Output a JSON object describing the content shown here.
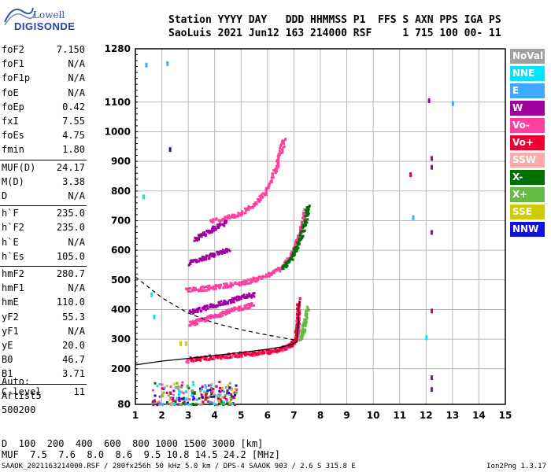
{
  "logo": {
    "line1": "Lowell",
    "line2": "DIGISONDE"
  },
  "header": {
    "line1": "Station YYYY DAY   DDD HHMMSS P1  FFS S AXN PPS IGA PS",
    "line2": "SaoLuis 2021 Jun12 163 214000 RSF     1 715 100 00- 11"
  },
  "params": [
    {
      "name": "foF2",
      "value": "7.150"
    },
    {
      "name": "foF1",
      "value": "N/A"
    },
    {
      "name": "foF1p",
      "value": "N/A"
    },
    {
      "name": "foE",
      "value": "N/A"
    },
    {
      "name": "foEp",
      "value": "0.42"
    },
    {
      "name": "fxI",
      "value": "7.55"
    },
    {
      "name": "foEs",
      "value": "4.75"
    },
    {
      "name": "fmin",
      "value": "1.80"
    },
    {
      "name": "MUF(D)",
      "value": "24.17"
    },
    {
      "name": "M(D)",
      "value": "3.38"
    },
    {
      "name": "D",
      "value": "N/A"
    },
    {
      "name": "h`F",
      "value": "235.0"
    },
    {
      "name": "h`F2",
      "value": "235.0"
    },
    {
      "name": "h`E",
      "value": "N/A"
    },
    {
      "name": "h`Es",
      "value": "105.0"
    },
    {
      "name": "hmF2",
      "value": "280.7"
    },
    {
      "name": "hmF1",
      "value": "N/A"
    },
    {
      "name": "hmE",
      "value": "110.0"
    },
    {
      "name": "yF2",
      "value": "55.3"
    },
    {
      "name": "yF1",
      "value": "N/A"
    },
    {
      "name": "yE",
      "value": "20.0"
    },
    {
      "name": "B0",
      "value": "46.7"
    },
    {
      "name": "B1",
      "value": "3.71"
    },
    {
      "name": "C-level",
      "value": "11"
    }
  ],
  "auto": {
    "line1": "Auto:",
    "line2": "Artist5",
    "line3": "500200"
  },
  "legend": [
    {
      "label": "NoVal",
      "color": "#a0a0a0"
    },
    {
      "label": "NNE",
      "color": "#00e5ff"
    },
    {
      "label": "E",
      "color": "#3fa9ff"
    },
    {
      "label": "W",
      "color": "#a000a0"
    },
    {
      "label": "Vo-",
      "color": "#ff40a0"
    },
    {
      "label": "Vo+",
      "color": "#ee0033"
    },
    {
      "label": "SSW",
      "color": "#ffaaaa"
    },
    {
      "label": "X-",
      "color": "#007000"
    },
    {
      "label": "X+",
      "color": "#66bb44"
    },
    {
      "label": "SSE",
      "color": "#cccc00"
    },
    {
      "label": "NNW",
      "color": "#1010dd"
    }
  ],
  "muf_table": {
    "d_label": "D",
    "d_values": "  100  200  400  600  800 1000 1500 3000 [km]",
    "muf_label": "MUF",
    "muf_values": "  7.5  7.6  8.0  8.6  9.5 10.8 14.5 24.2 [MHz]"
  },
  "footer": {
    "left": "SAAOK_2021163214000.RSF / 280fx256h 50 kHz 5.0 km / DPS-4 SAAOK 903 / 2.6 S 315.8 E",
    "right": "Ion2Png 1.3.17"
  },
  "chart_data": {
    "type": "scatter",
    "x_ticks": [
      "1",
      "2",
      "3",
      "4",
      "5",
      "6",
      "7",
      "8",
      "9",
      "10",
      "11",
      "12",
      "13",
      "14",
      "15"
    ],
    "y_ticks": [
      "80",
      "200",
      "300",
      "400",
      "500",
      "600",
      "700",
      "800",
      "900",
      "1000",
      "1100",
      "1280"
    ],
    "xlim": [
      1,
      15
    ],
    "ylim": [
      80,
      1280
    ],
    "grid": true,
    "profile_curve": [
      [
        1.0,
        213
      ],
      [
        2.0,
        226
      ],
      [
        3.0,
        235
      ],
      [
        4.0,
        245
      ],
      [
        5.0,
        255
      ],
      [
        6.0,
        266
      ],
      [
        6.6,
        275
      ],
      [
        6.9,
        282
      ],
      [
        7.1,
        290
      ]
    ],
    "profile_curve_upper": [
      [
        7.1,
        290
      ],
      [
        7.13,
        305
      ],
      [
        7.15,
        330
      ],
      [
        7.17,
        360
      ],
      [
        7.18,
        390
      ],
      [
        7.2,
        430
      ]
    ],
    "dashed_topside": [
      [
        1.0,
        510
      ],
      [
        2.0,
        440
      ],
      [
        3.0,
        388
      ],
      [
        4.0,
        354
      ],
      [
        5.0,
        332
      ],
      [
        6.0,
        314
      ],
      [
        7.0,
        298
      ]
    ],
    "trace_segments": [
      {
        "color": "#ff40a0",
        "points": [
          [
            2.9,
            232
          ],
          [
            3.5,
            238
          ],
          [
            4.5,
            246
          ],
          [
            5.5,
            255
          ],
          [
            6.2,
            263
          ],
          [
            6.6,
            272
          ],
          [
            6.9,
            286
          ],
          [
            7.05,
            305
          ],
          [
            7.1,
            340
          ],
          [
            7.12,
            380
          ],
          [
            7.14,
            420
          ]
        ]
      },
      {
        "color": "#ee0033",
        "points": [
          [
            3.0,
            236
          ],
          [
            4.0,
            244
          ],
          [
            5.0,
            252
          ],
          [
            6.0,
            262
          ],
          [
            6.8,
            280
          ],
          [
            7.0,
            300
          ],
          [
            7.1,
            350
          ],
          [
            7.13,
            440
          ]
        ]
      },
      {
        "color": "#ff40a0",
        "points": [
          [
            2.9,
            470
          ],
          [
            3.5,
            474
          ],
          [
            4.0,
            480
          ],
          [
            4.5,
            486
          ],
          [
            5.0,
            493
          ],
          [
            5.5,
            505
          ],
          [
            6.0,
            520
          ],
          [
            6.5,
            545
          ],
          [
            6.8,
            575
          ],
          [
            7.0,
            610
          ],
          [
            7.2,
            660
          ],
          [
            7.3,
            700
          ],
          [
            7.4,
            740
          ]
        ]
      },
      {
        "color": "#007000",
        "points": [
          [
            6.5,
            540
          ],
          [
            6.8,
            565
          ],
          [
            7.0,
            600
          ],
          [
            7.2,
            640
          ],
          [
            7.4,
            700
          ],
          [
            7.5,
            760
          ]
        ]
      },
      {
        "color": "#66bb44",
        "points": [
          [
            7.2,
            300
          ],
          [
            7.3,
            330
          ],
          [
            7.4,
            370
          ],
          [
            7.5,
            410
          ]
        ]
      },
      {
        "color": "#ff40a0",
        "points": [
          [
            3.8,
            700
          ],
          [
            4.5,
            715
          ],
          [
            5.0,
            730
          ],
          [
            5.5,
            760
          ],
          [
            5.9,
            800
          ],
          [
            6.2,
            860
          ],
          [
            6.4,
            920
          ],
          [
            6.6,
            980
          ]
        ]
      },
      {
        "color": "#ff40a0",
        "points": [
          [
            3.0,
            355
          ],
          [
            3.4,
            365
          ],
          [
            3.8,
            378
          ],
          [
            4.2,
            390
          ],
          [
            4.6,
            400
          ],
          [
            5.0,
            410
          ],
          [
            5.4,
            420
          ]
        ]
      },
      {
        "color": "#a000a0",
        "points": [
          [
            3.0,
            395
          ],
          [
            3.5,
            405
          ],
          [
            4.0,
            420
          ],
          [
            4.5,
            430
          ],
          [
            5.0,
            445
          ],
          [
            5.5,
            455
          ]
        ]
      },
      {
        "color": "#a000a0",
        "points": [
          [
            3.0,
            560
          ],
          [
            3.5,
            575
          ],
          [
            4.0,
            590
          ],
          [
            4.5,
            605
          ]
        ]
      },
      {
        "color": "#a000a0",
        "points": [
          [
            3.2,
            640
          ],
          [
            3.6,
            660
          ],
          [
            4.0,
            680
          ],
          [
            4.4,
            700
          ]
        ]
      }
    ],
    "sporadic_points": [
      {
        "color": "#1010dd",
        "x": 2.3,
        "y": 940
      },
      {
        "color": "#a000a0",
        "x": 12.2,
        "y": 910
      },
      {
        "color": "#a000a0",
        "x": 12.2,
        "y": 880
      },
      {
        "color": "#a000a0",
        "x": 12.2,
        "y": 660
      },
      {
        "color": "#a000a0",
        "x": 12.2,
        "y": 170
      },
      {
        "color": "#a000a0",
        "x": 12.2,
        "y": 130
      },
      {
        "color": "#a000a0",
        "x": 12.1,
        "y": 1105
      },
      {
        "color": "#3fa9ff",
        "x": 13.0,
        "y": 1095
      },
      {
        "color": "#3fa9ff",
        "x": 1.4,
        "y": 1225
      },
      {
        "color": "#3fa9ff",
        "x": 2.2,
        "y": 1230
      },
      {
        "color": "#00e5ff",
        "x": 1.3,
        "y": 780
      },
      {
        "color": "#3fa9ff",
        "x": 11.5,
        "y": 710
      },
      {
        "color": "#00e5ff",
        "x": 12.0,
        "y": 305
      },
      {
        "color": "#ee0033",
        "x": 11.4,
        "y": 855
      },
      {
        "color": "#ee0033",
        "x": 12.2,
        "y": 395
      },
      {
        "color": "#cccc00",
        "x": 2.7,
        "y": 285
      },
      {
        "color": "#cccc00",
        "x": 2.9,
        "y": 285
      },
      {
        "color": "#00e5ff",
        "x": 1.6,
        "y": 450
      },
      {
        "color": "#00e5ff",
        "x": 1.7,
        "y": 375
      }
    ],
    "es_cluster": {
      "x_range": [
        1.6,
        4.8
      ],
      "y_range": [
        82,
        160
      ]
    }
  }
}
